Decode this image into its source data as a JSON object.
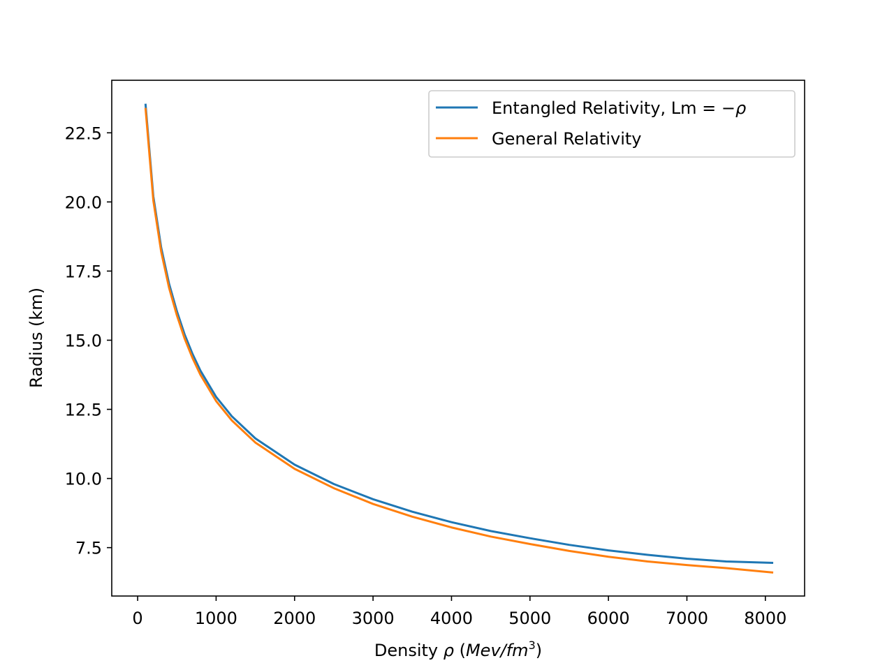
{
  "chart_data": {
    "type": "line",
    "title": "",
    "xlabel": "Density ρ (Mev/fm³)",
    "xlabel_parts": {
      "prefix": "Density ",
      "rho": "ρ",
      "open": " (",
      "unit": "Mev/fm",
      "exp": "3",
      "close": ")"
    },
    "ylabel": "Radius (km)",
    "xlim": [
      -330,
      8500
    ],
    "ylim": [
      5.75,
      24.4
    ],
    "xticks": [
      0,
      1000,
      2000,
      3000,
      4000,
      5000,
      6000,
      7000,
      8000
    ],
    "xtick_labels": [
      "0",
      "1000",
      "2000",
      "3000",
      "4000",
      "5000",
      "6000",
      "7000",
      "8000"
    ],
    "yticks": [
      7.5,
      10.0,
      12.5,
      15.0,
      17.5,
      20.0,
      22.5
    ],
    "ytick_labels": [
      "7.5",
      "10.0",
      "12.5",
      "15.0",
      "17.5",
      "20.0",
      "22.5"
    ],
    "grid": false,
    "legend_position": "top-right",
    "x": [
      100,
      200,
      300,
      400,
      500,
      600,
      700,
      800,
      1000,
      1200,
      1500,
      2000,
      2500,
      3000,
      3500,
      4000,
      4500,
      5000,
      5500,
      6000,
      6500,
      7000,
      7500,
      8100
    ],
    "series": [
      {
        "name": "Entangled Relativity, Lm = −ρ",
        "color": "#1f77b4",
        "values": [
          23.55,
          20.2,
          18.35,
          17.05,
          16.05,
          15.2,
          14.5,
          13.9,
          12.95,
          12.25,
          11.45,
          10.5,
          9.8,
          9.25,
          8.8,
          8.42,
          8.1,
          7.84,
          7.6,
          7.4,
          7.24,
          7.1,
          7.0,
          6.95
        ]
      },
      {
        "name": "General Relativity",
        "color": "#ff7f0e",
        "values": [
          23.4,
          20.05,
          18.2,
          16.9,
          15.9,
          15.05,
          14.35,
          13.75,
          12.8,
          12.1,
          11.3,
          10.35,
          9.65,
          9.08,
          8.62,
          8.23,
          7.9,
          7.63,
          7.38,
          7.17,
          7.0,
          6.87,
          6.76,
          6.6
        ]
      }
    ],
    "legend_labels": {
      "s0_text": "Entangled Relativity, Lm = −",
      "s0_rho": "ρ",
      "s1_text": "General Relativity"
    }
  }
}
